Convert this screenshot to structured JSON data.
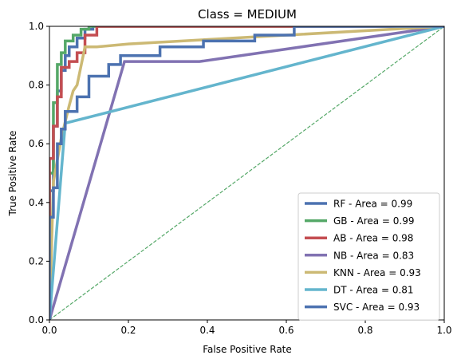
{
  "chart_data": {
    "type": "line",
    "title": "Class = MEDIUM",
    "xlabel": "False Positive Rate",
    "ylabel": "True Positive Rate",
    "xlim": [
      0,
      1
    ],
    "ylim": [
      0,
      1
    ],
    "x_ticks": [
      "0.0",
      "0.2",
      "0.4",
      "0.6",
      "0.8",
      "1.0"
    ],
    "y_ticks": [
      "0.0",
      "0.2",
      "0.4",
      "0.6",
      "0.8",
      "1.0"
    ],
    "grid": false,
    "legend_position": "lower right",
    "diagonal": {
      "x": [
        0,
        1
      ],
      "y": [
        0,
        1
      ],
      "color": "#55a868",
      "style": "dashed"
    },
    "series": [
      {
        "name": "RF - Area = 0.99",
        "color": "#4c72b0",
        "x": [
          0,
          0,
          0.01,
          0.01,
          0.02,
          0.02,
          0.03,
          0.03,
          0.04,
          0.04,
          0.05,
          0.05,
          0.07,
          0.07,
          0.09,
          0.09,
          0.11,
          0.11,
          1.0
        ],
        "y": [
          0,
          0.44,
          0.44,
          0.66,
          0.66,
          0.78,
          0.78,
          0.85,
          0.85,
          0.9,
          0.9,
          0.93,
          0.93,
          0.96,
          0.96,
          0.99,
          0.99,
          1.0,
          1.0
        ]
      },
      {
        "name": "GB - Area = 0.99",
        "color": "#55a868",
        "x": [
          0,
          0,
          0.01,
          0.01,
          0.02,
          0.02,
          0.03,
          0.03,
          0.04,
          0.04,
          0.06,
          0.06,
          0.08,
          0.08,
          0.1,
          0.1,
          1.0
        ],
        "y": [
          0,
          0.5,
          0.5,
          0.74,
          0.74,
          0.87,
          0.87,
          0.91,
          0.91,
          0.95,
          0.95,
          0.97,
          0.97,
          0.99,
          0.99,
          1.0,
          1.0
        ]
      },
      {
        "name": "AB - Area = 0.98",
        "color": "#c44e52",
        "x": [
          0,
          0,
          0.01,
          0.01,
          0.02,
          0.02,
          0.03,
          0.03,
          0.05,
          0.05,
          0.07,
          0.07,
          0.09,
          0.09,
          0.12,
          0.12,
          1.0
        ],
        "y": [
          0,
          0.55,
          0.55,
          0.66,
          0.66,
          0.76,
          0.76,
          0.86,
          0.86,
          0.88,
          0.88,
          0.91,
          0.91,
          0.97,
          0.97,
          1.0,
          1.0
        ]
      },
      {
        "name": "NB - Area = 0.83",
        "color": "#8172b2",
        "x": [
          0,
          0.19,
          0.38,
          1.0
        ],
        "y": [
          0,
          0.88,
          0.88,
          1.0
        ]
      },
      {
        "name": "KNN - Area = 0.93",
        "color": "#ccb974",
        "x": [
          0,
          0.01,
          0.03,
          0.05,
          0.06,
          0.07,
          0.09,
          0.12,
          0.2,
          1.0
        ],
        "y": [
          0,
          0.47,
          0.62,
          0.73,
          0.78,
          0.8,
          0.93,
          0.93,
          0.94,
          1.0
        ]
      },
      {
        "name": "DT - Area = 0.81",
        "color": "#64b5cd",
        "x": [
          0,
          0.04,
          1.0
        ],
        "y": [
          0,
          0.67,
          1.0
        ]
      },
      {
        "name": "SVC - Area = 0.93",
        "color": "#4c72b0",
        "x": [
          0,
          0,
          0.01,
          0.01,
          0.02,
          0.02,
          0.03,
          0.03,
          0.04,
          0.04,
          0.07,
          0.07,
          0.1,
          0.1,
          0.15,
          0.15,
          0.18,
          0.18,
          0.28,
          0.28,
          0.39,
          0.39,
          0.52,
          0.52,
          0.62,
          0.62,
          1.0
        ],
        "y": [
          0,
          0.35,
          0.35,
          0.45,
          0.45,
          0.6,
          0.6,
          0.65,
          0.65,
          0.71,
          0.71,
          0.76,
          0.76,
          0.83,
          0.83,
          0.87,
          0.87,
          0.9,
          0.9,
          0.93,
          0.93,
          0.95,
          0.95,
          0.97,
          0.97,
          1.0,
          1.0
        ]
      }
    ]
  }
}
